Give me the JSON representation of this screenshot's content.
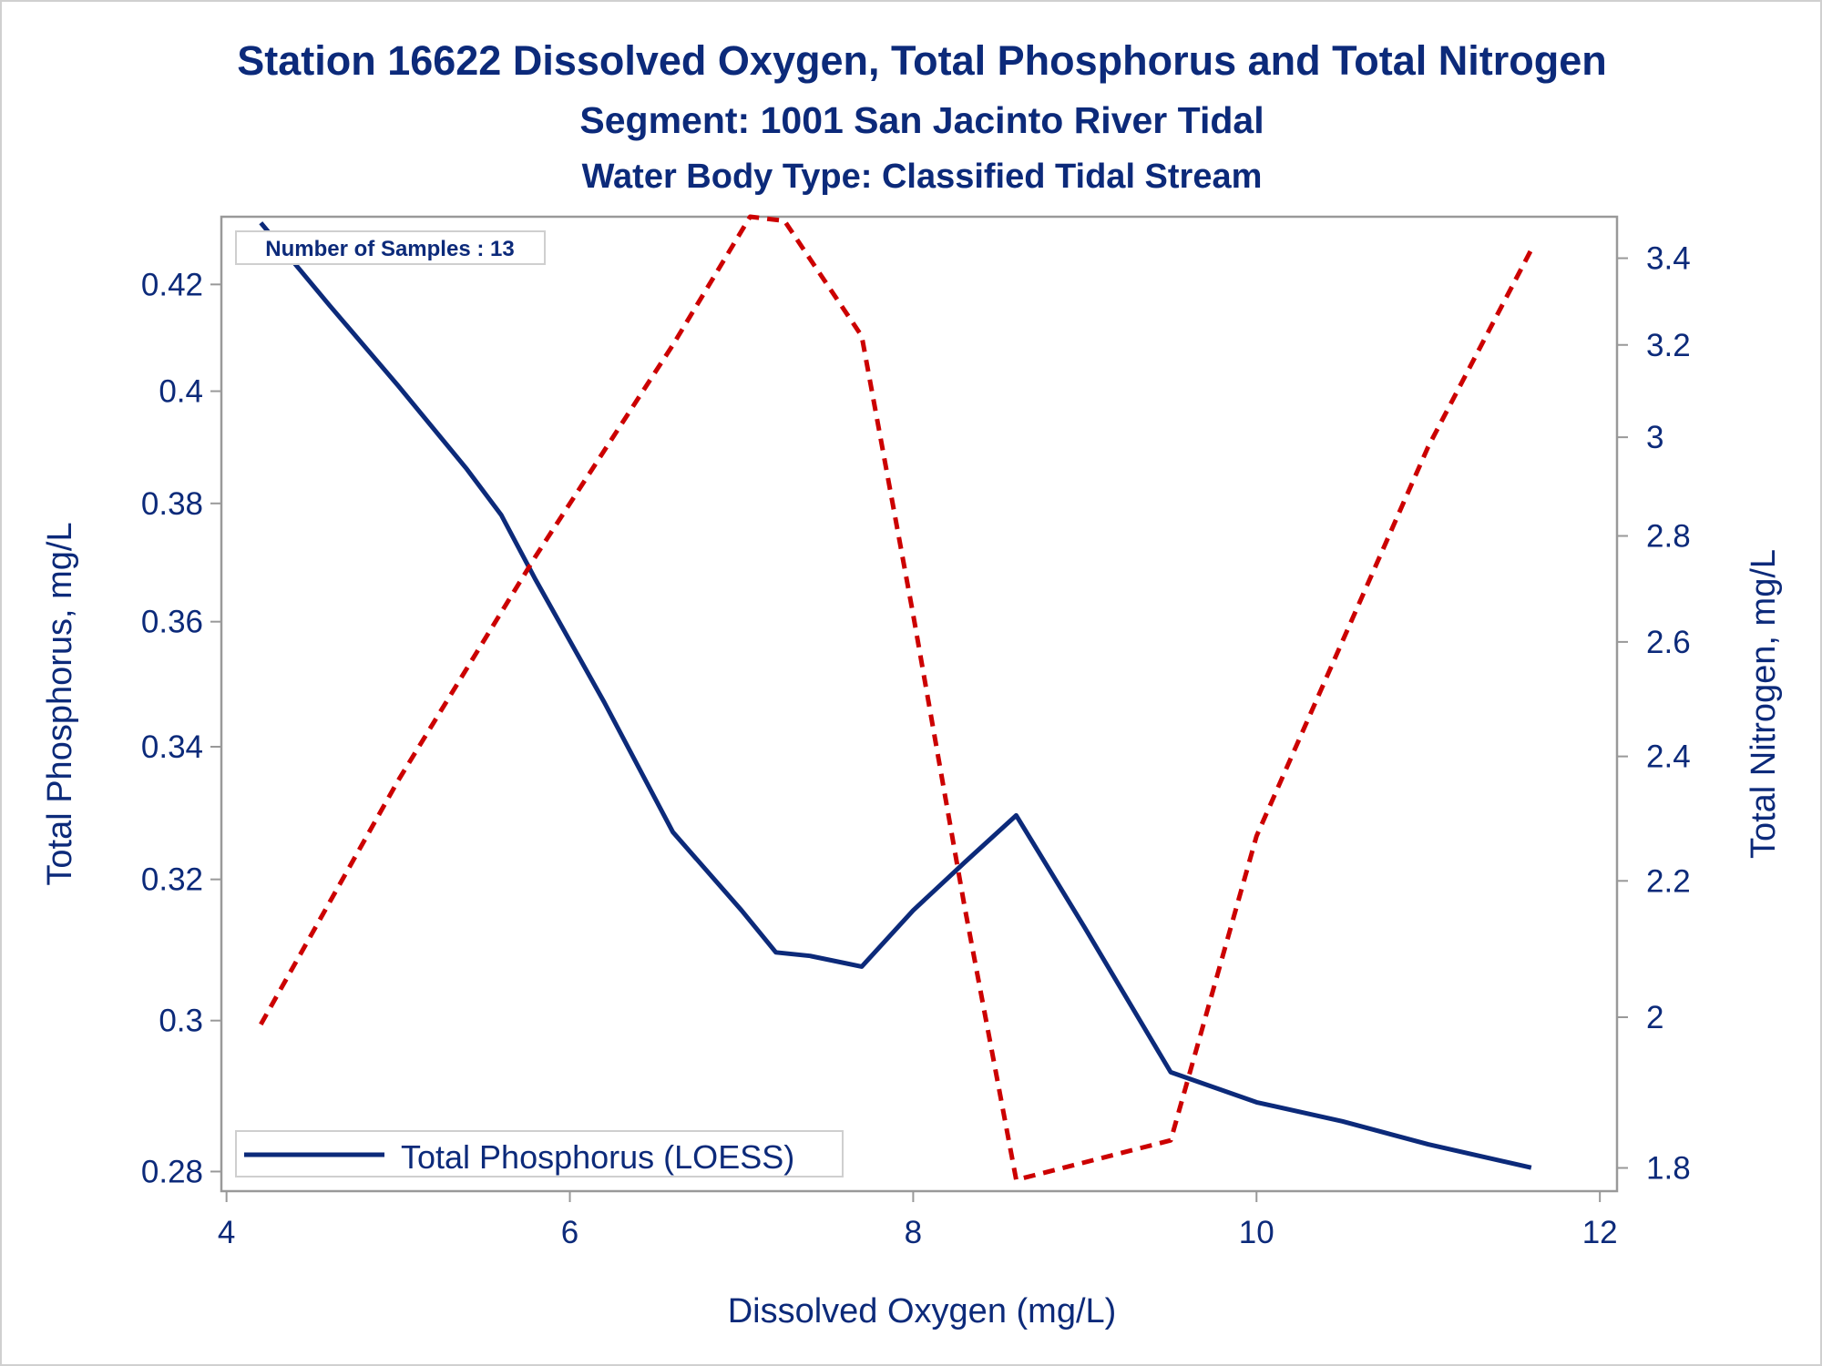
{
  "chart_data": {
    "type": "line",
    "title": "Station 16622  Dissolved Oxygen, Total Phosphorus and Total Nitrogen",
    "subtitle": "Segment: 1001  San Jacinto River Tidal",
    "subtitle2": "Water Body Type: Classified Tidal Stream",
    "xlabel": "Dissolved Oxygen (mg/L)",
    "ylabel": "Total Phosphorus, mg/L",
    "y2label": "Total Nitrogen, mg/L",
    "xlim": [
      3.97,
      12.1
    ],
    "ylim": [
      0.2775,
      0.4332
    ],
    "y2lim": [
      1.771,
      3.5
    ],
    "y_scale": "log",
    "y2_scale": "log",
    "xticks": [
      "4",
      "6",
      "8",
      "10",
      "12"
    ],
    "yticks": [
      "0.28",
      "0.3",
      "0.32",
      "0.34",
      "0.36",
      "0.38",
      "0.4",
      "0.42"
    ],
    "y2ticks": [
      "1.8",
      "2",
      "2.2",
      "2.4",
      "2.6",
      "2.8",
      "3",
      "3.2",
      "3.4"
    ],
    "annotation": "Number of Samples : 13",
    "legend_position": "bottom-left",
    "colors": {
      "phosphorus": "#0c2a7a",
      "nitrogen": "#cc0000",
      "text": "#0c2a7a",
      "axis": "#999999"
    },
    "series": [
      {
        "name": "Total Phosphorus (LOESS)",
        "axis": "left",
        "style": "solid",
        "x": [
          4.2,
          4.6,
          5.0,
          5.4,
          5.6,
          5.8,
          6.2,
          6.6,
          7.0,
          7.2,
          7.4,
          7.6,
          7.7,
          8.0,
          8.3,
          8.6,
          9.0,
          9.5,
          10.0,
          10.5,
          11.0,
          11.6
        ],
        "values": [
          0.432,
          0.416,
          0.401,
          0.386,
          0.378,
          0.367,
          0.347,
          0.327,
          0.3155,
          0.3095,
          0.309,
          0.308,
          0.3075,
          0.3155,
          0.3225,
          0.3295,
          0.313,
          0.293,
          0.289,
          0.2865,
          0.2835,
          0.2805
        ]
      },
      {
        "name": "",
        "axis": "right",
        "style": "dashed",
        "x": [
          4.2,
          5.0,
          5.8,
          6.6,
          7.05,
          7.25,
          7.7,
          8.0,
          8.3,
          8.6,
          9.5,
          10.0,
          11.0,
          11.6
        ],
        "values": [
          1.99,
          2.36,
          2.76,
          3.2,
          3.5,
          3.49,
          3.22,
          2.65,
          2.16,
          1.785,
          1.835,
          2.27,
          2.98,
          3.42
        ]
      }
    ]
  }
}
